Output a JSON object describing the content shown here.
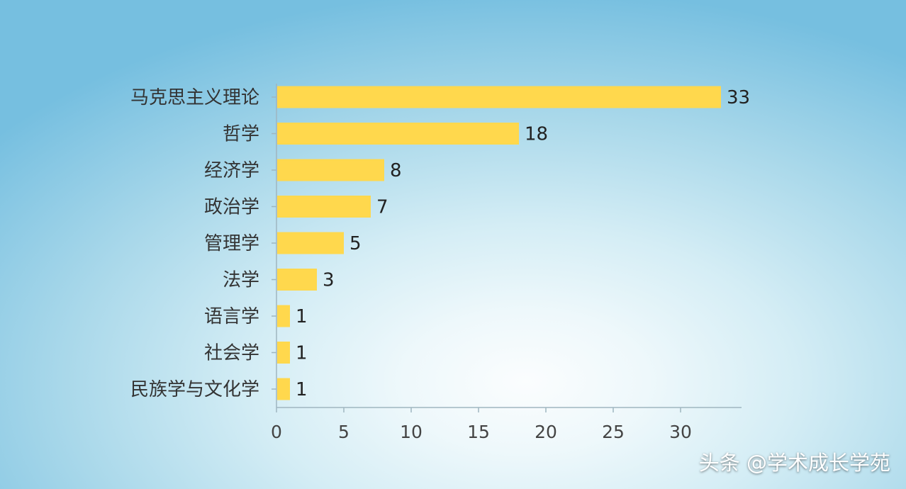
{
  "chart_data": {
    "type": "bar",
    "orientation": "horizontal",
    "categories": [
      "马克思主义理论",
      "哲学",
      "经济学",
      "政治学",
      "管理学",
      "法学",
      "语言学",
      "社会学",
      "民族学与文化学"
    ],
    "values": [
      33,
      18,
      8,
      7,
      5,
      3,
      1,
      1,
      1
    ],
    "x_ticks": [
      0,
      5,
      10,
      15,
      20,
      25,
      30
    ],
    "xlim": [
      0,
      34.6
    ],
    "grid": false,
    "data_labels": true,
    "bar_color": "#ffd84d"
  },
  "watermark": {
    "text": "头条 @学术成长学苑"
  }
}
